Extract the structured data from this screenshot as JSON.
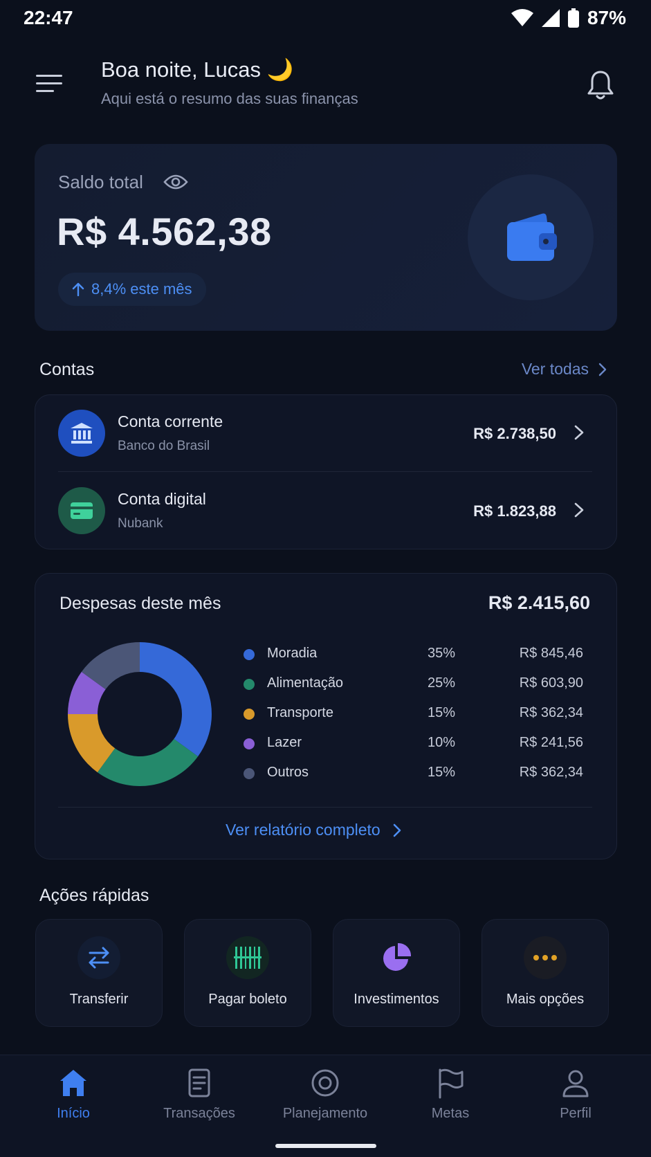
{
  "status_bar": {
    "time": "22:47",
    "battery": "87%",
    "icons": [
      "wifi-icon",
      "signal-icon",
      "battery-icon"
    ]
  },
  "header": {
    "greeting": "Boa noite, Lucas 🌙",
    "subtitle": "Aqui está o resumo das suas finanças",
    "menu_icon": "menu-icon",
    "notification_icon": "bell-icon"
  },
  "balance": {
    "label": "Saldo total",
    "value": "R$ 4.562,38",
    "growth": "8,4% este mês",
    "icon": "wallet-icon"
  },
  "accounts": {
    "title": "Contas",
    "see_all": "Ver todas",
    "items": [
      {
        "name": "Conta corrente",
        "bank": "Banco do Brasil",
        "amount": "R$ 2.738,50",
        "icon": "bank-icon",
        "color": "#1f4fbf"
      },
      {
        "name": "Conta digital",
        "bank": "Nubank",
        "amount": "R$ 1.823,88",
        "icon": "card-icon",
        "color": "#1e5a48"
      }
    ]
  },
  "expenses": {
    "title": "Despesas deste mês",
    "total": "R$ 2.415,60",
    "report_link": "Ver relatório completo",
    "chart_data": {
      "type": "pie",
      "categories": [
        "Moradia",
        "Alimentação",
        "Transporte",
        "Lazer",
        "Outros"
      ],
      "values": [
        35,
        25,
        15,
        10,
        15
      ],
      "colors": [
        "#3569d8",
        "#24896b",
        "#d99a2b",
        "#8a5fd6",
        "#4b5677"
      ]
    },
    "legend": [
      {
        "name": "Moradia",
        "pct": "35%",
        "amount": "R$ 845,46",
        "color": "#3569d8"
      },
      {
        "name": "Alimentação",
        "pct": "25%",
        "amount": "R$ 603,90",
        "color": "#24896b"
      },
      {
        "name": "Transporte",
        "pct": "15%",
        "amount": "R$ 362,34",
        "color": "#d99a2b"
      },
      {
        "name": "Lazer",
        "pct": "10%",
        "amount": "R$ 241,56",
        "color": "#8a5fd6"
      },
      {
        "name": "Outros",
        "pct": "15%",
        "amount": "R$ 362,34",
        "color": "#4b5677"
      }
    ]
  },
  "quick_actions": {
    "title": "Ações rápidas",
    "items": [
      {
        "label": "Transferir",
        "icon": "transfer-icon"
      },
      {
        "label": "Pagar boleto",
        "icon": "barcode-icon"
      },
      {
        "label": "Investimentos",
        "icon": "pie-chart-icon"
      },
      {
        "label": "Mais opções",
        "icon": "more-icon"
      }
    ]
  },
  "bottom_nav": {
    "items": [
      {
        "label": "Início",
        "icon": "home-icon",
        "active": true
      },
      {
        "label": "Transações",
        "icon": "document-icon",
        "active": false
      },
      {
        "label": "Planejamento",
        "icon": "target-icon",
        "active": false
      },
      {
        "label": "Metas",
        "icon": "flag-icon",
        "active": false
      },
      {
        "label": "Perfil",
        "icon": "user-icon",
        "active": false
      }
    ]
  },
  "colors": {
    "background": "#0b101c",
    "accent": "#3f7ff0",
    "card": "#0f1526"
  }
}
